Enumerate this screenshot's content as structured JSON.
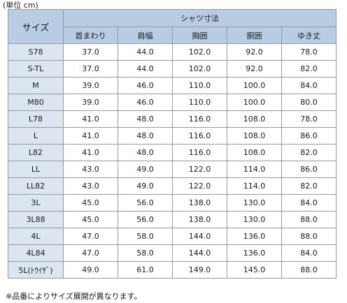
{
  "unit_label": "(単位 cm)",
  "table": {
    "size_header": "サイズ",
    "group_header": "シャツ寸法",
    "columns": [
      "首まわり",
      "肩幅",
      "胸囲",
      "胴囲",
      "ゆき丈"
    ],
    "rows": [
      {
        "size": "S78",
        "values": [
          "37.0",
          "44.0",
          "102.0",
          "92.0",
          "78.0"
        ]
      },
      {
        "size": "S-TL",
        "values": [
          "37.0",
          "44.0",
          "102.0",
          "92.0",
          "82.0"
        ]
      },
      {
        "size": "M",
        "values": [
          "39.0",
          "46.0",
          "110.0",
          "100.0",
          "84.0"
        ]
      },
      {
        "size": "M80",
        "values": [
          "39.0",
          "46.0",
          "110.0",
          "100.0",
          "80.0"
        ]
      },
      {
        "size": "L78",
        "values": [
          "41.0",
          "48.0",
          "116.0",
          "108.0",
          "78.0"
        ]
      },
      {
        "size": "L",
        "values": [
          "41.0",
          "48.0",
          "116.0",
          "108.0",
          "86.0"
        ]
      },
      {
        "size": "L82",
        "values": [
          "41.0",
          "48.0",
          "116.0",
          "108.0",
          "82.0"
        ]
      },
      {
        "size": "LL",
        "values": [
          "43.0",
          "49.0",
          "122.0",
          "114.0",
          "86.0"
        ]
      },
      {
        "size": "LL82",
        "values": [
          "43.0",
          "49.0",
          "122.0",
          "114.0",
          "82.0"
        ]
      },
      {
        "size": "3L",
        "values": [
          "45.0",
          "56.0",
          "138.0",
          "130.0",
          "84.0"
        ]
      },
      {
        "size": "3L88",
        "values": [
          "45.0",
          "56.0",
          "138.0",
          "130.0",
          "88.0"
        ]
      },
      {
        "size": "4L",
        "values": [
          "47.0",
          "58.0",
          "144.0",
          "136.0",
          "88.0"
        ]
      },
      {
        "size": "4L84",
        "values": [
          "47.0",
          "58.0",
          "144.0",
          "136.0",
          "84.0"
        ]
      },
      {
        "size": "5L(ﾄｳｲｻﾞ)",
        "values": [
          "49.0",
          "61.0",
          "149.0",
          "145.0",
          "88.0"
        ]
      }
    ]
  },
  "footnote": "※品番によりサイズ展開が異なります。",
  "colors": {
    "header_bg": "#b8cce4",
    "size_column_bg": "#dce6f1",
    "border": "#9a9a9a"
  }
}
